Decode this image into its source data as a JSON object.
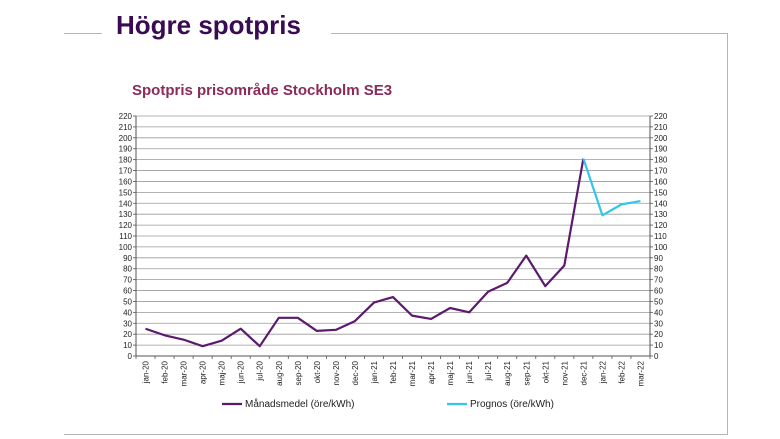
{
  "header": {
    "title": "Högre spotpris"
  },
  "chart_data": {
    "type": "line",
    "title": "Spotpris prisområde Stockholm SE3",
    "xlabel": "",
    "ylabel": "",
    "ylim": [
      0,
      220
    ],
    "y_ticks": [
      0,
      10,
      20,
      30,
      40,
      50,
      60,
      70,
      80,
      90,
      100,
      110,
      120,
      130,
      140,
      150,
      160,
      170,
      180,
      190,
      200,
      210,
      220
    ],
    "grid": true,
    "legend_position": "bottom",
    "categories": [
      "jan-20",
      "feb-20",
      "mar-20",
      "apr-20",
      "maj-20",
      "jun-20",
      "jul-20",
      "aug-20",
      "sep-20",
      "okt-20",
      "nov-20",
      "dec-20",
      "jan-21",
      "feb-21",
      "mar-21",
      "apr-21",
      "maj-21",
      "jun-21",
      "jul-21",
      "aug-21",
      "sep-21",
      "okt-21",
      "nov-21",
      "dec-21",
      "jan-22",
      "feb-22",
      "mar-22"
    ],
    "series": [
      {
        "name": "Månadsmedel (öre/kWh)",
        "color": "#5b1a6e",
        "values": [
          25,
          19,
          15,
          9,
          14,
          25,
          9,
          35,
          35,
          23,
          24,
          32,
          49,
          54,
          37,
          34,
          44,
          40,
          59,
          67,
          92,
          64,
          83,
          181,
          null,
          null,
          null
        ]
      },
      {
        "name": "Prognos (öre/kWh)",
        "color": "#33c6ec",
        "values": [
          null,
          null,
          null,
          null,
          null,
          null,
          null,
          null,
          null,
          null,
          null,
          null,
          null,
          null,
          null,
          null,
          null,
          null,
          null,
          null,
          null,
          null,
          null,
          181,
          129,
          139,
          142
        ]
      }
    ]
  }
}
